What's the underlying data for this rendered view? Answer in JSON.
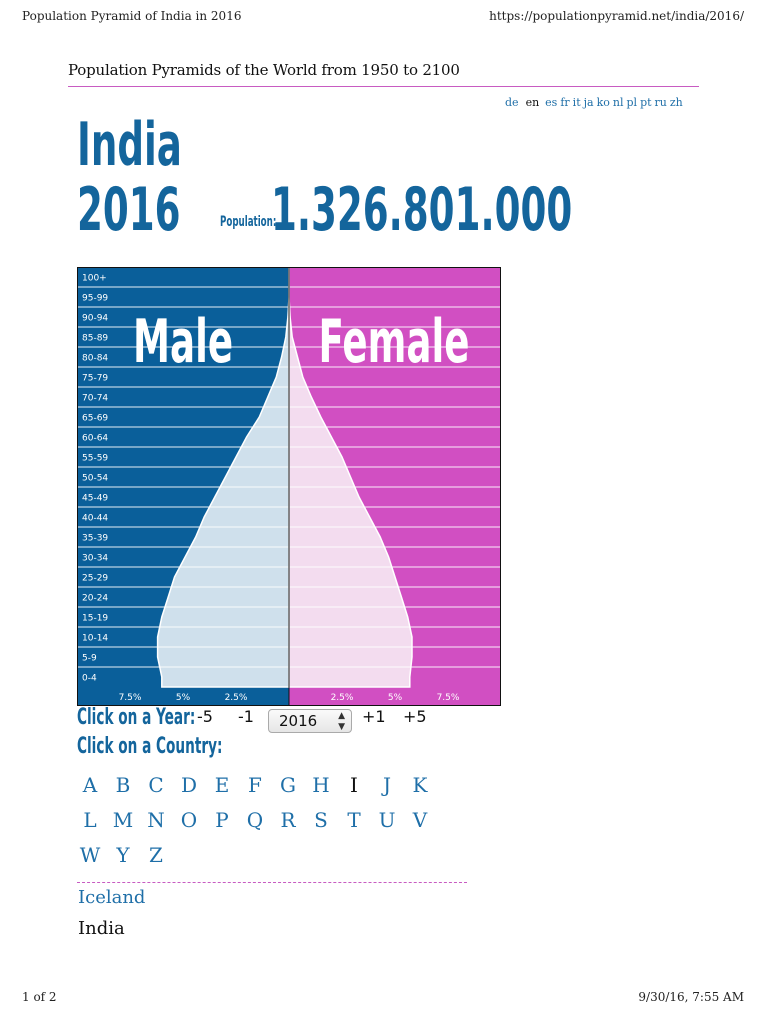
{
  "print_header": {
    "title": "Population Pyramid of India in 2016",
    "url": "https://populationpyramid.net/india/2016/"
  },
  "site_heading": "Population Pyramids of the World from 1950 to 2100",
  "languages": [
    {
      "code": "de",
      "current": false
    },
    {
      "code": "en",
      "current": true
    },
    {
      "code": "es",
      "current": false
    },
    {
      "code": "fr",
      "current": false
    },
    {
      "code": "it",
      "current": false
    },
    {
      "code": "ja",
      "current": false
    },
    {
      "code": "ko",
      "current": false
    },
    {
      "code": "nl",
      "current": false
    },
    {
      "code": "pl",
      "current": false
    },
    {
      "code": "pt",
      "current": false
    },
    {
      "code": "ru",
      "current": false
    },
    {
      "code": "zh",
      "current": false
    }
  ],
  "country": "India",
  "year": "2016",
  "population_label": "Population:",
  "population_value": "1.326.801.000",
  "colors": {
    "male_bg": "#0a5f9a",
    "male_bar": "#cfe0ec",
    "female_bg": "#d14fc2",
    "female_bar": "#f3dcef",
    "title_blue": "#14659c",
    "link_blue": "#1f6fa8"
  },
  "chart_data": {
    "type": "bar",
    "orientation": "horizontal",
    "title": "",
    "categories": [
      "100+",
      "95-99",
      "90-94",
      "85-89",
      "80-84",
      "75-79",
      "70-74",
      "65-69",
      "60-64",
      "55-59",
      "50-54",
      "45-49",
      "40-44",
      "35-39",
      "30-34",
      "25-29",
      "20-24",
      "15-19",
      "10-14",
      "5-9",
      "0-4"
    ],
    "series": [
      {
        "name": "Male",
        "values": [
          0.0,
          0.0,
          0.05,
          0.15,
          0.35,
          0.6,
          1.0,
          1.4,
          2.0,
          2.5,
          3.0,
          3.5,
          4.0,
          4.4,
          4.9,
          5.4,
          5.7,
          6.0,
          6.2,
          6.2,
          6.0
        ]
      },
      {
        "name": "Female",
        "values": [
          0.0,
          0.0,
          0.05,
          0.15,
          0.4,
          0.65,
          1.05,
          1.5,
          2.0,
          2.5,
          2.9,
          3.3,
          3.8,
          4.3,
          4.7,
          5.0,
          5.3,
          5.6,
          5.8,
          5.8,
          5.7
        ]
      }
    ],
    "series_labels": [
      "Male",
      "Female"
    ],
    "x_unit": "percent of total population",
    "xlim": [
      -10,
      10
    ],
    "x_ticks": [
      {
        "value": -7.5,
        "label": "7.5%"
      },
      {
        "value": -5,
        "label": "5%"
      },
      {
        "value": -2.5,
        "label": "2.5%"
      },
      {
        "value": 2.5,
        "label": "2.5%"
      },
      {
        "value": 5,
        "label": "5%"
      },
      {
        "value": 7.5,
        "label": "7.5%"
      }
    ],
    "grid": true
  },
  "controls": {
    "click_year_label": "Click on a Year:",
    "click_country_label": "Click on a Country:",
    "minus5": "-5",
    "minus1": "-1",
    "plus1": "+1",
    "plus5": "+5",
    "year_selected": "2016"
  },
  "letters": [
    "A",
    "B",
    "C",
    "D",
    "E",
    "F",
    "G",
    "H",
    "I",
    "J",
    "K",
    "L",
    "M",
    "N",
    "O",
    "P",
    "Q",
    "R",
    "S",
    "T",
    "U",
    "V",
    "W",
    "Y",
    "Z"
  ],
  "active_letter": "I",
  "countries": [
    "Iceland",
    "India"
  ],
  "footer": {
    "page": "1 of 2",
    "date": "9/30/16, 7:55 AM"
  }
}
